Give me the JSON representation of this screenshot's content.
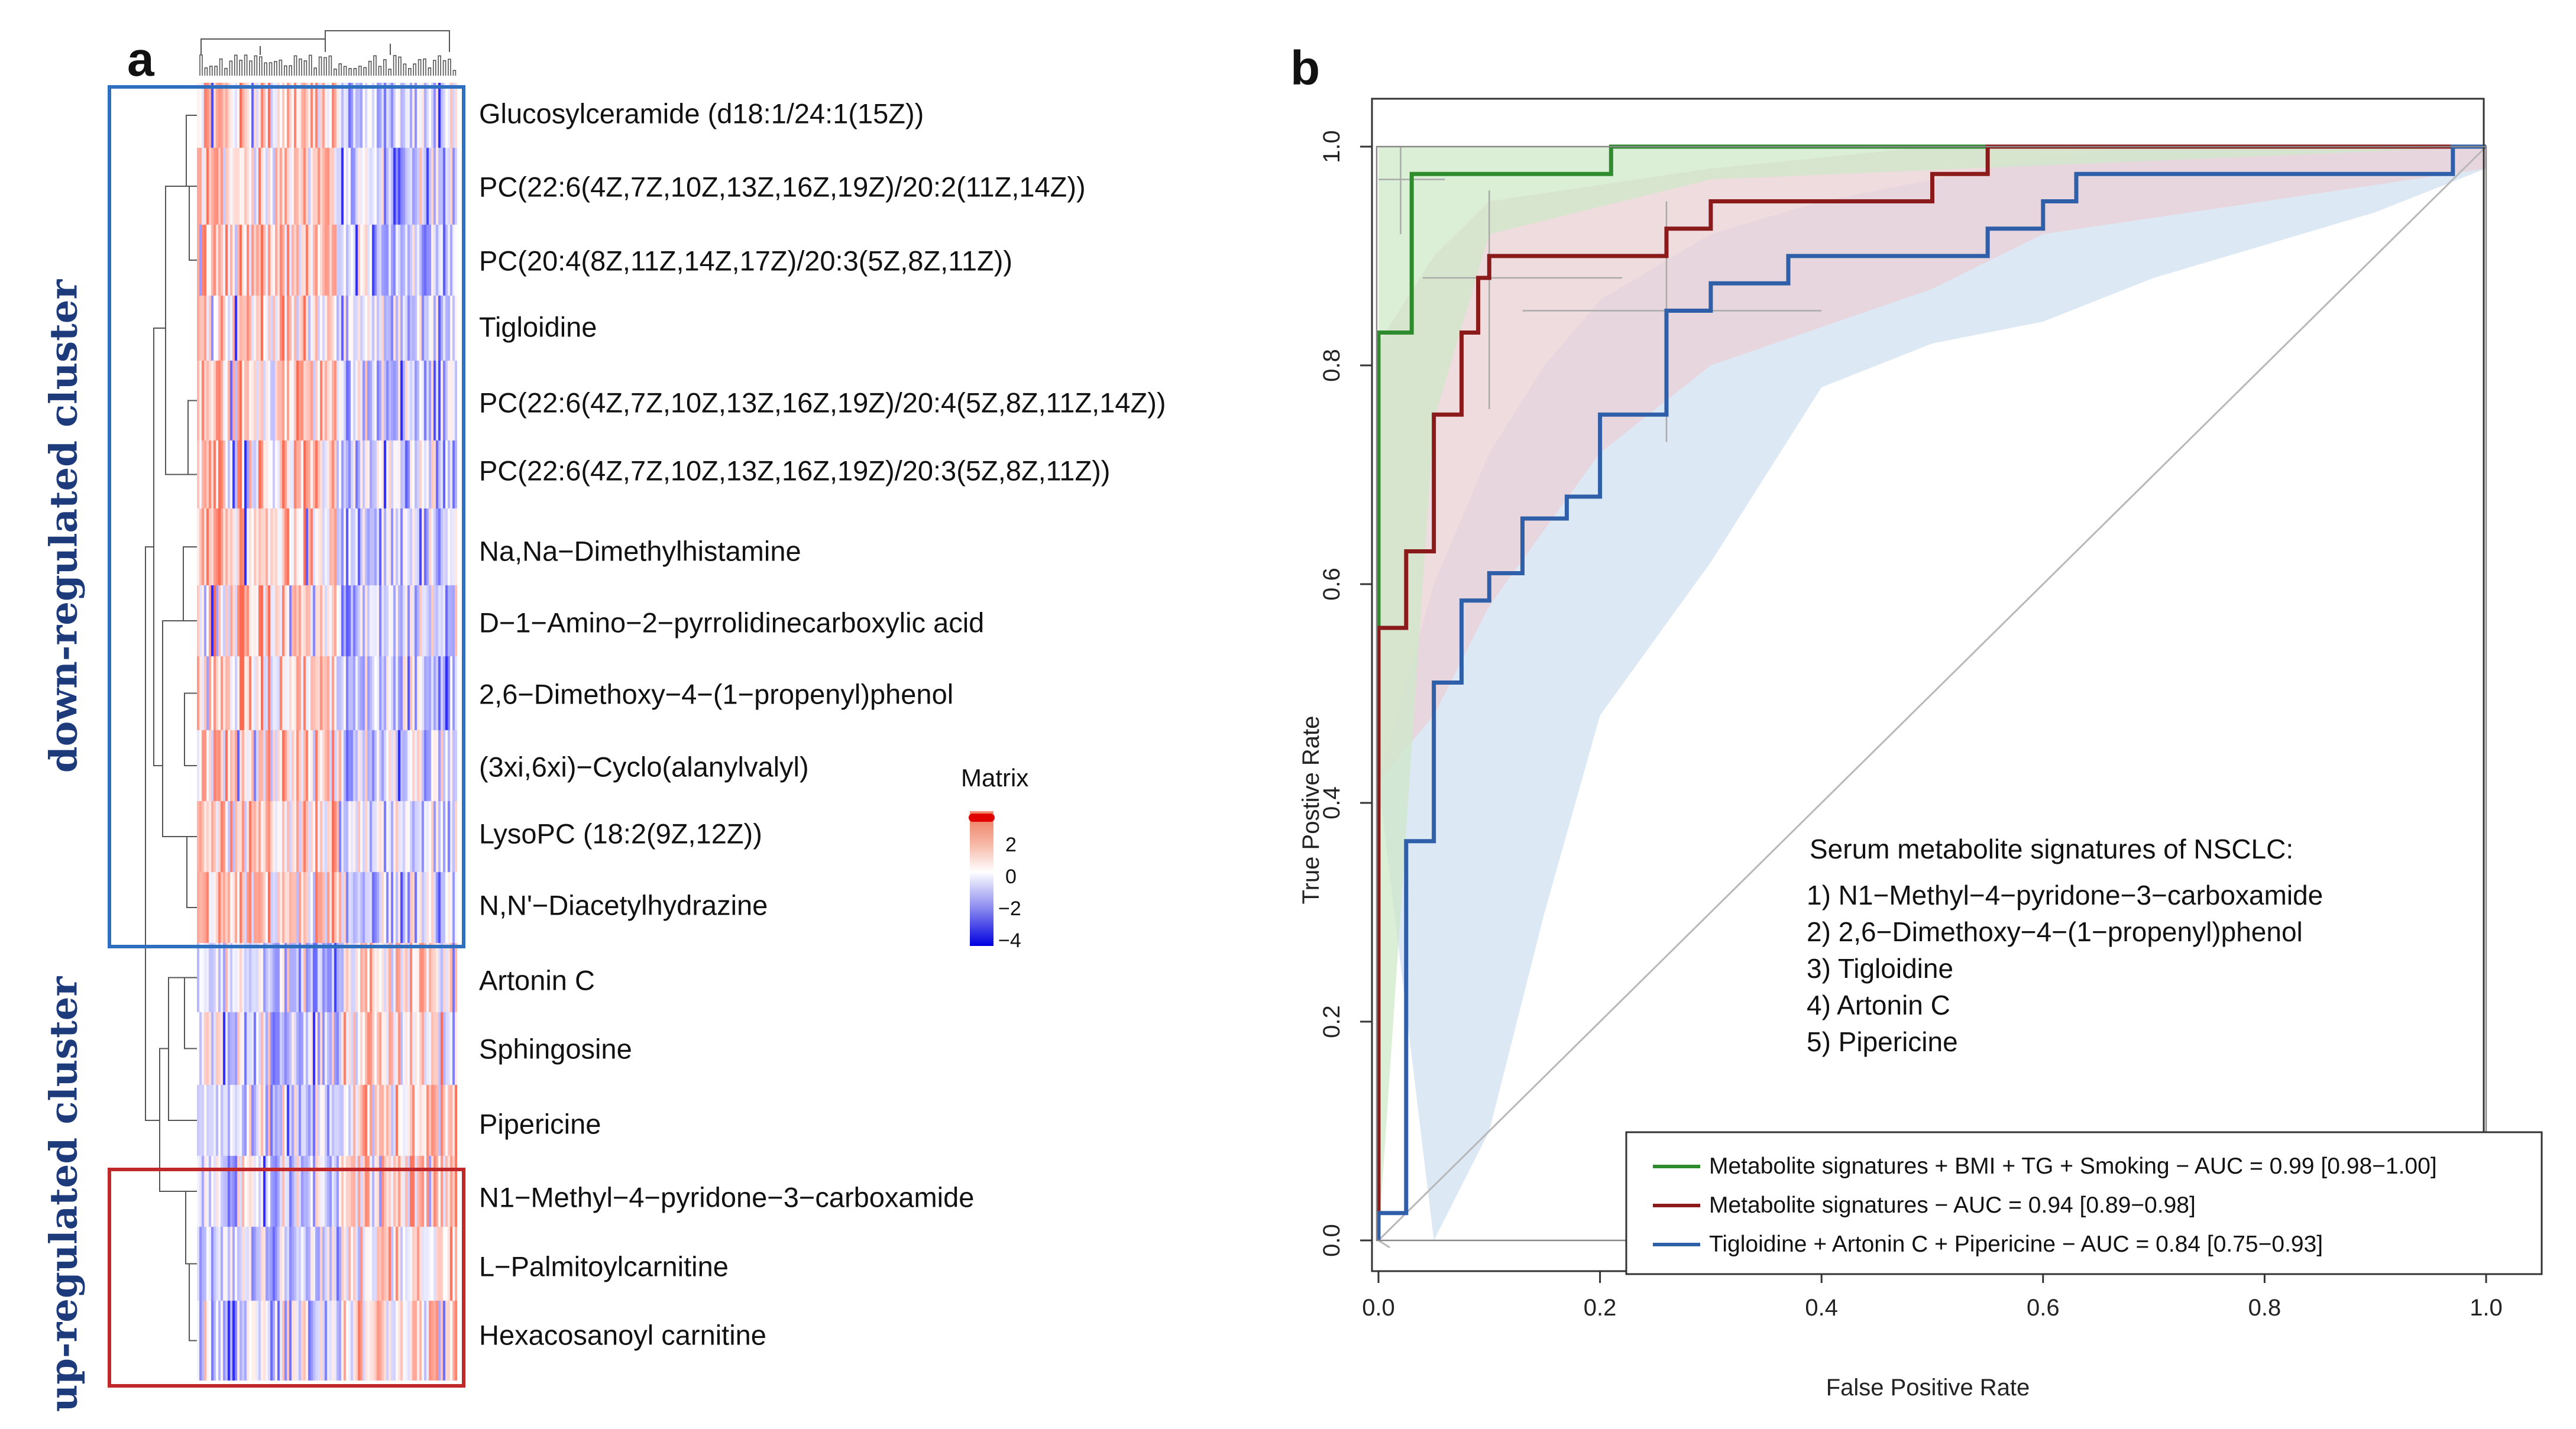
{
  "panel_a": {
    "label": "a",
    "cluster_labels": {
      "down": "down-regulated cluster",
      "up": "up-regulated cluster"
    },
    "metabolites": [
      "Glucosylceramide (d18:1/24:1(15Z))",
      "PC(22:6(4Z,7Z,10Z,13Z,16Z,19Z)/20:2(11Z,14Z))",
      "PC(20:4(8Z,11Z,14Z,17Z)/20:3(5Z,8Z,11Z))",
      "Tigloidine",
      "PC(22:6(4Z,7Z,10Z,13Z,16Z,19Z)/20:4(5Z,8Z,11Z,14Z))",
      "PC(22:6(4Z,7Z,10Z,13Z,16Z,19Z)/20:3(5Z,8Z,11Z))",
      "Na,Na−Dimethylhistamine",
      "D−1−Amino−2−pyrrolidinecarboxylic acid",
      "2,6−Dimethoxy−4−(1−propenyl)phenol",
      "(3xi,6xi)−Cyclo(alanylvalyl)",
      "LysoPC (18:2(9Z,12Z))",
      "N,N'−Diacetylhydrazine",
      "Artonin C",
      "Sphingosine",
      "Pipericine",
      "N1−Methyl−4−pyridone−3−carboxamide",
      "L−Palmitoylcarnitine",
      "Hexacosanoyl carnitine"
    ],
    "color_key": {
      "title": "Matrix",
      "ticks": [
        "2",
        "0",
        "−2",
        "−4"
      ],
      "colors": [
        "#e00000",
        "#f08a70",
        "#ffffff",
        "#8a8af0",
        "#0000e0"
      ]
    },
    "box_colors": {
      "down": "#2f6fc0",
      "up": "#c0282a"
    }
  },
  "chart_data": {
    "type": "line",
    "panel_label": "b",
    "xlabel": "False Positive Rate",
    "ylabel": "True Postive Rate",
    "xlim": [
      0,
      1
    ],
    "ylim": [
      0,
      1
    ],
    "xticks": [
      "0.0",
      "0.2",
      "0.4",
      "0.6",
      "0.8",
      "1.0"
    ],
    "yticks": [
      "0.0",
      "0.2",
      "0.4",
      "0.6",
      "0.8",
      "1.0"
    ],
    "annotation": {
      "title": "Serum metabolite signatures of NSCLC:",
      "items": [
        "1) N1−Methyl−4−pyridone−3−carboxamide",
        "2) 2,6−Dimethoxy−4−(1−propenyl)phenol",
        "3) Tigloidine",
        "4) Artonin C",
        "5) Pipericine"
      ]
    },
    "series": [
      {
        "name": "Metabolite signatures + BMI + TG + Smoking − AUC = 0.99 [0.98−1.00]",
        "color": "#2e8b2e",
        "band_color": "#cfe8c8",
        "x": [
          0,
          0,
          0.03,
          0.03,
          0.21,
          0.21,
          1
        ],
        "y": [
          0,
          0.83,
          0.83,
          0.975,
          0.975,
          1,
          1
        ],
        "ci_upper": [
          [
            0,
            0.85
          ],
          [
            0.0,
            1.0
          ],
          [
            1,
            1
          ]
        ],
        "ci_lower": [
          [
            0,
            0
          ],
          [
            0.05,
            0.75
          ],
          [
            0.1,
            0.92
          ],
          [
            0.3,
            0.97
          ],
          [
            1,
            1
          ]
        ]
      },
      {
        "name": "Metabolite signatures − AUC = 0.94 [0.89−0.98]",
        "color": "#8b1a1a",
        "band_color": "#ead0d4",
        "x": [
          0,
          0,
          0.025,
          0.025,
          0.05,
          0.05,
          0.075,
          0.075,
          0.09,
          0.09,
          0.1,
          0.1,
          0.13,
          0.13,
          0.26,
          0.26,
          0.3,
          0.3,
          0.36,
          0.36,
          0.5,
          0.5,
          0.55,
          0.55,
          1
        ],
        "y": [
          0,
          0.56,
          0.56,
          0.63,
          0.63,
          0.755,
          0.755,
          0.83,
          0.83,
          0.88,
          0.88,
          0.9,
          0.9,
          0.9,
          0.9,
          0.925,
          0.925,
          0.95,
          0.95,
          0.95,
          0.95,
          0.975,
          0.975,
          1,
          1
        ],
        "ci_upper": [
          [
            0,
            0.7
          ],
          [
            0.0,
            0.82
          ],
          [
            0.05,
            0.9
          ],
          [
            0.1,
            0.95
          ],
          [
            0.3,
            0.98
          ],
          [
            0.5,
            1
          ],
          [
            1,
            1
          ]
        ],
        "ci_lower": [
          [
            0,
            0.42
          ],
          [
            0.05,
            0.48
          ],
          [
            0.1,
            0.58
          ],
          [
            0.2,
            0.72
          ],
          [
            0.3,
            0.8
          ],
          [
            0.5,
            0.87
          ],
          [
            0.6,
            0.92
          ],
          [
            1,
            0.98
          ]
        ]
      },
      {
        "name": "Tigloidine + Artonin C + Pipericine − AUC = 0.84 [0.75−0.93]",
        "color": "#2f5fa8",
        "band_color": "#d2e0f2",
        "x": [
          0,
          0,
          0.025,
          0.025,
          0.05,
          0.05,
          0.075,
          0.075,
          0.1,
          0.1,
          0.13,
          0.13,
          0.17,
          0.17,
          0.2,
          0.2,
          0.26,
          0.26,
          0.3,
          0.3,
          0.37,
          0.37,
          0.55,
          0.55,
          0.6,
          0.6,
          0.63,
          0.63,
          0.97,
          0.97,
          1
        ],
        "y": [
          0,
          0.025,
          0.025,
          0.365,
          0.365,
          0.51,
          0.51,
          0.585,
          0.585,
          0.61,
          0.61,
          0.66,
          0.66,
          0.68,
          0.68,
          0.755,
          0.755,
          0.85,
          0.85,
          0.875,
          0.875,
          0.9,
          0.9,
          0.925,
          0.925,
          0.95,
          0.95,
          0.975,
          0.975,
          1,
          1
        ],
        "ci_upper": [
          [
            0,
            0.42
          ],
          [
            0.05,
            0.6
          ],
          [
            0.1,
            0.72
          ],
          [
            0.15,
            0.8
          ],
          [
            0.2,
            0.86
          ],
          [
            0.3,
            0.92
          ],
          [
            0.4,
            0.95
          ],
          [
            0.6,
            0.99
          ],
          [
            0.7,
            1
          ],
          [
            1,
            1
          ]
        ],
        "ci_lower": [
          [
            0.05,
            0
          ],
          [
            0.1,
            0.1
          ],
          [
            0.15,
            0.3
          ],
          [
            0.2,
            0.48
          ],
          [
            0.3,
            0.62
          ],
          [
            0.4,
            0.78
          ],
          [
            0.5,
            0.82
          ],
          [
            0.6,
            0.84
          ],
          [
            0.7,
            0.88
          ],
          [
            0.9,
            0.94
          ],
          [
            1,
            0.98
          ]
        ]
      }
    ]
  }
}
